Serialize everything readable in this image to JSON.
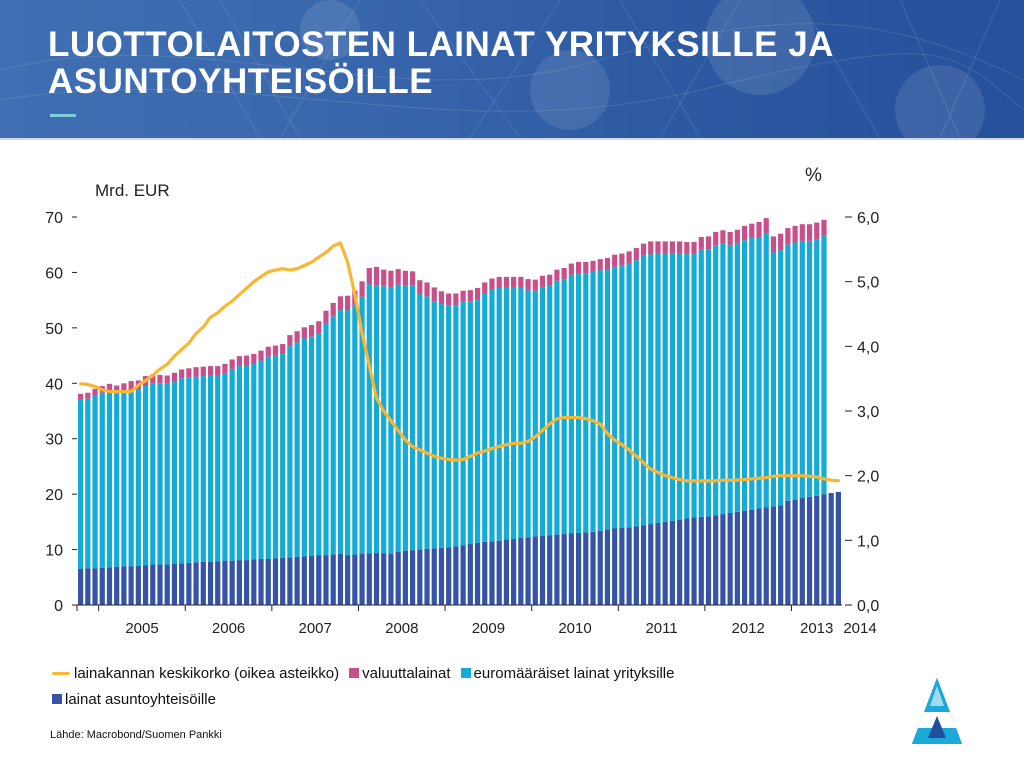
{
  "title": "LUOTTOLAITOSTEN LAINAT YRITYKSILLE JA ASUNTOYHTEISÖILLE",
  "source": "Lähde: Macrobond/Suomen Pankki",
  "colors": {
    "header": "#2f5ba3",
    "housing": "#3554a5",
    "euro": "#14abd6",
    "fx": "#c8508a",
    "rate": "#f7b733"
  },
  "chart_data": {
    "type": "bar",
    "stacked": true,
    "left_unit": "Mrd. EUR",
    "right_unit": "%",
    "left_axis": {
      "ylim": [
        0,
        70
      ],
      "ticks": [
        "0",
        "10",
        "20",
        "30",
        "40",
        "50",
        "60",
        "70"
      ]
    },
    "right_axis": {
      "ylim": [
        0,
        6
      ],
      "ticks": [
        "0,0",
        "1,0",
        "2,0",
        "3,0",
        "4,0",
        "5,0",
        "6,0"
      ]
    },
    "x_labels": [
      "2005",
      "2006",
      "2007",
      "2008",
      "2009",
      "2010",
      "2011",
      "2012",
      "2013",
      "2014"
    ],
    "months_per_year_label": 12,
    "first_period": "2004-10",
    "legend": [
      {
        "key": "rate",
        "label": "lainakannan keskikorko (oikea asteikko)",
        "kind": "line"
      },
      {
        "key": "fx",
        "label": "valuuttalainat",
        "kind": "box"
      },
      {
        "key": "euro",
        "label": "euromääräiset lainat yrityksille",
        "kind": "box"
      },
      {
        "key": "housing",
        "label": "lainat asuntoyhteisöille",
        "kind": "box"
      }
    ],
    "series": [
      {
        "name": "lainat asuntoyhteisöille",
        "key": "housing",
        "values": [
          6.5,
          6.6,
          6.6,
          6.7,
          6.8,
          6.9,
          7.0,
          7.0,
          7.1,
          7.2,
          7.3,
          7.3,
          7.3,
          7.4,
          7.5,
          7.6,
          7.7,
          7.8,
          7.8,
          7.9,
          8.0,
          8.0,
          8.1,
          8.1,
          8.2,
          8.3,
          8.3,
          8.4,
          8.5,
          8.6,
          8.7,
          8.8,
          8.9,
          9.0,
          9.0,
          9.1,
          9.2,
          9.0,
          9.1,
          9.2,
          9.3,
          9.4,
          9.3,
          9.2,
          9.6,
          9.8,
          9.9,
          10.0,
          10.1,
          10.2,
          10.3,
          10.4,
          10.6,
          10.8,
          11.0,
          11.2,
          11.4,
          11.5,
          11.6,
          11.8,
          11.9,
          12.1,
          12.2,
          12.4,
          12.5,
          12.6,
          12.7,
          12.8,
          12.9,
          13.0,
          13.1,
          13.2,
          13.4,
          13.6,
          13.8,
          13.9,
          14.0,
          14.2,
          14.4,
          14.6,
          14.8,
          15.0,
          15.2,
          15.4,
          15.6,
          15.8,
          15.9,
          16.0,
          16.2,
          16.4,
          16.6,
          16.8,
          17.0,
          17.2,
          17.4,
          17.6,
          17.8,
          18.0,
          18.8,
          19.0,
          19.3,
          19.5,
          19.7,
          20.0,
          20.2,
          20.4
        ]
      },
      {
        "name": "euromääräiset lainat yrityksille",
        "key": "euro",
        "values": [
          30.5,
          30.6,
          31.2,
          31.6,
          31.9,
          31.2,
          31.4,
          31.8,
          31.8,
          32.4,
          32.7,
          32.7,
          32.6,
          33.0,
          33.4,
          33.4,
          33.5,
          33.5,
          33.6,
          33.5,
          33.8,
          34.6,
          35.0,
          35.1,
          35.3,
          35.8,
          36.5,
          36.6,
          36.8,
          38.1,
          38.7,
          39.3,
          39.5,
          40.0,
          41.8,
          43.0,
          44.0,
          44.2,
          45.0,
          46.4,
          48.6,
          48.3,
          48.2,
          48.1,
          48.2,
          47.8,
          47.7,
          46.1,
          45.6,
          44.6,
          44.0,
          43.6,
          43.5,
          43.9,
          43.8,
          44.0,
          44.8,
          45.4,
          45.6,
          45.4,
          45.3,
          45.1,
          44.6,
          44.3,
          44.9,
          45.0,
          45.8,
          46.0,
          46.7,
          46.9,
          46.8,
          46.9,
          47.0,
          47.0,
          47.2,
          47.3,
          47.6,
          48.0,
          48.6,
          48.7,
          48.6,
          48.4,
          48.2,
          48.0,
          47.7,
          47.5,
          48.2,
          48.2,
          48.7,
          48.8,
          48.2,
          48.4,
          48.8,
          49.0,
          49.0,
          49.5,
          45.8,
          46.0,
          46.2,
          46.4,
          46.4,
          46.2,
          46.3,
          46.6
        ]
      },
      {
        "name": "valuuttalainat",
        "key": "fx",
        "values": [
          1.1,
          1.1,
          1.2,
          1.2,
          1.2,
          1.5,
          1.6,
          1.6,
          1.6,
          1.7,
          1.6,
          1.5,
          1.5,
          1.5,
          1.6,
          1.7,
          1.7,
          1.7,
          1.7,
          1.7,
          1.7,
          1.7,
          1.8,
          1.8,
          1.8,
          1.8,
          1.8,
          1.8,
          1.8,
          2.0,
          2.0,
          2.0,
          2.1,
          2.2,
          2.3,
          2.4,
          2.5,
          2.6,
          2.6,
          2.8,
          2.9,
          3.3,
          3.0,
          3.0,
          2.8,
          2.7,
          2.6,
          2.5,
          2.5,
          2.5,
          2.3,
          2.2,
          2.1,
          2.0,
          2.0,
          2.0,
          2.0,
          2.0,
          2.0,
          2.0,
          2.0,
          2.0,
          2.0,
          2.0,
          2.0,
          2.0,
          2.0,
          2.0,
          2.0,
          2.0,
          2.0,
          2.0,
          2.0,
          2.0,
          2.2,
          2.2,
          2.2,
          2.2,
          2.2,
          2.3,
          2.2,
          2.2,
          2.2,
          2.2,
          2.2,
          2.2,
          2.3,
          2.3,
          2.4,
          2.4,
          2.5,
          2.5,
          2.6,
          2.6,
          2.7,
          2.7,
          2.9,
          3.0,
          3.0,
          3.0,
          3.0,
          3.0,
          3.0,
          2.9
        ]
      },
      {
        "name": "lainakannan keskikorko (oikea asteikko)",
        "key": "rate",
        "axis": "right",
        "values": [
          3.42,
          3.41,
          3.38,
          3.33,
          3.3,
          3.3,
          3.3,
          3.3,
          3.4,
          3.47,
          3.55,
          3.65,
          3.72,
          3.85,
          3.95,
          4.05,
          4.2,
          4.3,
          4.45,
          4.52,
          4.62,
          4.7,
          4.8,
          4.9,
          5.0,
          5.08,
          5.15,
          5.18,
          5.2,
          5.18,
          5.2,
          5.25,
          5.3,
          5.38,
          5.45,
          5.55,
          5.6,
          5.3,
          4.8,
          4.2,
          3.7,
          3.2,
          3.0,
          2.85,
          2.7,
          2.55,
          2.45,
          2.4,
          2.35,
          2.3,
          2.27,
          2.25,
          2.24,
          2.25,
          2.3,
          2.35,
          2.38,
          2.42,
          2.45,
          2.48,
          2.5,
          2.5,
          2.53,
          2.6,
          2.7,
          2.8,
          2.88,
          2.9,
          2.9,
          2.9,
          2.88,
          2.85,
          2.8,
          2.65,
          2.55,
          2.48,
          2.4,
          2.3,
          2.2,
          2.1,
          2.05,
          2.0,
          1.97,
          1.94,
          1.92,
          1.92,
          1.92,
          1.92,
          1.92,
          1.93,
          1.93,
          1.93,
          1.94,
          1.95,
          1.96,
          1.97,
          1.99,
          2.0,
          2.0,
          2.0,
          2.0,
          1.99,
          1.98,
          1.95,
          1.93,
          1.92
        ]
      }
    ]
  }
}
